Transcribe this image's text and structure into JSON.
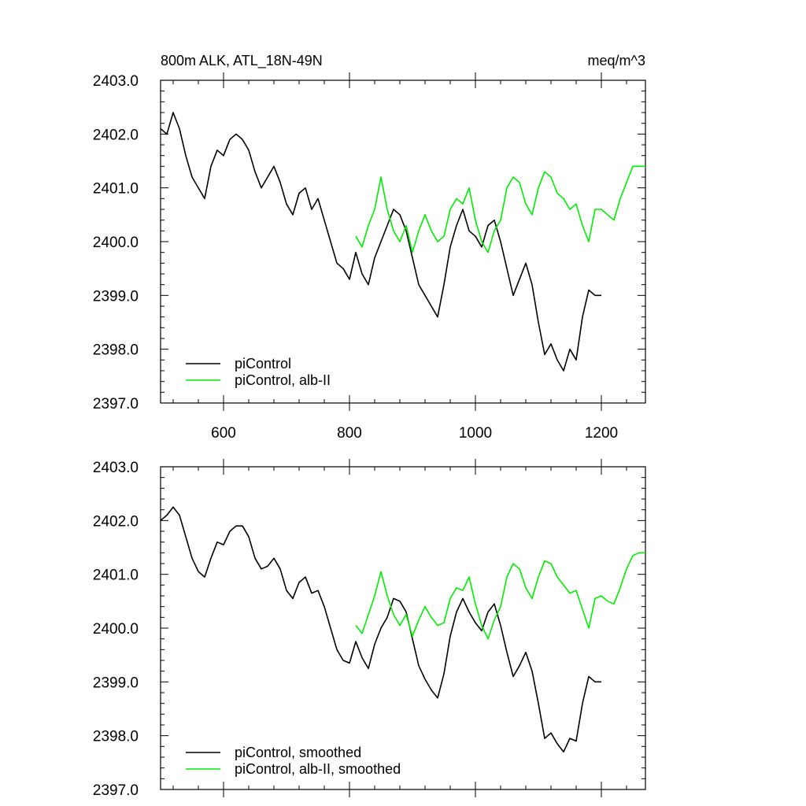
{
  "chart_data": [
    {
      "type": "line",
      "title": "800m ALK, ATL_18N-49N",
      "units": "meq/m^3",
      "xlim": [
        500,
        1270
      ],
      "ylim": [
        2397.0,
        2403.0
      ],
      "x_ticks": [
        600,
        800,
        1000,
        1200
      ],
      "x_tick_labels": [
        "600",
        "800",
        "1000",
        "1200"
      ],
      "y_ticks": [
        2397.0,
        2398.0,
        2399.0,
        2400.0,
        2401.0,
        2402.0,
        2403.0
      ],
      "y_tick_labels": [
        "2397.0",
        "2398.0",
        "2399.0",
        "2400.0",
        "2401.0",
        "2402.0",
        "2403.0"
      ],
      "legend_position": "bottom-left",
      "series": [
        {
          "name": "piControl",
          "color": "#000000",
          "x": [
            500,
            510,
            520,
            530,
            540,
            550,
            560,
            570,
            580,
            590,
            600,
            610,
            620,
            630,
            640,
            650,
            660,
            670,
            680,
            690,
            700,
            710,
            720,
            730,
            740,
            750,
            760,
            770,
            780,
            790,
            800,
            810,
            820,
            830,
            840,
            850,
            860,
            870,
            880,
            890,
            900,
            910,
            920,
            930,
            940,
            950,
            960,
            970,
            980,
            990,
            1000,
            1010,
            1020,
            1030,
            1040,
            1050,
            1060,
            1070,
            1080,
            1090,
            1100,
            1110,
            1120,
            1130,
            1140,
            1150,
            1160,
            1170,
            1180,
            1190,
            1200
          ],
          "y": [
            2402.1,
            2402.0,
            2402.4,
            2402.1,
            2401.6,
            2401.2,
            2401.0,
            2400.8,
            2401.4,
            2401.7,
            2401.6,
            2401.9,
            2402.0,
            2401.9,
            2401.7,
            2401.3,
            2401.0,
            2401.2,
            2401.4,
            2401.1,
            2400.7,
            2400.5,
            2400.9,
            2401.0,
            2400.6,
            2400.8,
            2400.4,
            2400.0,
            2399.6,
            2399.5,
            2399.3,
            2399.8,
            2399.4,
            2399.2,
            2399.7,
            2400.0,
            2400.3,
            2400.6,
            2400.5,
            2400.2,
            2399.7,
            2399.2,
            2399.0,
            2398.8,
            2398.6,
            2399.2,
            2399.9,
            2400.3,
            2400.6,
            2400.2,
            2400.1,
            2399.9,
            2400.3,
            2400.4,
            2400.0,
            2399.5,
            2399.0,
            2399.3,
            2399.6,
            2399.2,
            2398.5,
            2397.9,
            2398.1,
            2397.8,
            2397.6,
            2398.0,
            2397.8,
            2398.6,
            2399.1,
            2399.0,
            2399.0
          ]
        },
        {
          "name": "piControl, alb-II",
          "color": "#00ee00",
          "x": [
            810,
            820,
            830,
            840,
            850,
            860,
            870,
            880,
            890,
            900,
            910,
            920,
            930,
            940,
            950,
            960,
            970,
            980,
            990,
            1000,
            1010,
            1020,
            1030,
            1040,
            1050,
            1060,
            1070,
            1080,
            1090,
            1100,
            1110,
            1120,
            1130,
            1140,
            1150,
            1160,
            1170,
            1180,
            1190,
            1200,
            1210,
            1220,
            1230,
            1240,
            1250,
            1260,
            1270
          ],
          "y": [
            2400.1,
            2399.9,
            2400.3,
            2400.6,
            2401.2,
            2400.6,
            2400.2,
            2400.0,
            2400.3,
            2399.8,
            2400.2,
            2400.5,
            2400.2,
            2400.0,
            2400.1,
            2400.6,
            2400.8,
            2400.7,
            2401.0,
            2400.4,
            2400.0,
            2399.8,
            2400.2,
            2400.4,
            2401.0,
            2401.2,
            2401.1,
            2400.7,
            2400.5,
            2401.0,
            2401.3,
            2401.2,
            2400.9,
            2400.8,
            2400.6,
            2400.7,
            2400.3,
            2400.0,
            2400.6,
            2400.6,
            2400.5,
            2400.4,
            2400.8,
            2401.1,
            2401.4,
            2401.4,
            2401.4
          ]
        }
      ]
    },
    {
      "type": "line",
      "title": "",
      "ylim": [
        2397.0,
        2403.0
      ],
      "xlim": [
        500,
        1270
      ],
      "x_ticks": [
        600,
        800,
        1000,
        1200
      ],
      "y_ticks": [
        2397.0,
        2398.0,
        2399.0,
        2400.0,
        2401.0,
        2402.0,
        2403.0
      ],
      "y_tick_labels": [
        "2397.0",
        "2398.0",
        "2399.0",
        "2400.0",
        "2401.0",
        "2402.0",
        "2403.0"
      ],
      "legend_position": "bottom-left",
      "series": [
        {
          "name": "piControl, smoothed",
          "color": "#000000",
          "x": [
            500,
            510,
            520,
            530,
            540,
            550,
            560,
            570,
            580,
            590,
            600,
            610,
            620,
            630,
            640,
            650,
            660,
            670,
            680,
            690,
            700,
            710,
            720,
            730,
            740,
            750,
            760,
            770,
            780,
            790,
            800,
            810,
            820,
            830,
            840,
            850,
            860,
            870,
            880,
            890,
            900,
            910,
            920,
            930,
            940,
            950,
            960,
            970,
            980,
            990,
            1000,
            1010,
            1020,
            1030,
            1040,
            1050,
            1060,
            1070,
            1080,
            1090,
            1100,
            1110,
            1120,
            1130,
            1140,
            1150,
            1160,
            1170,
            1180,
            1190,
            1200
          ],
          "y": [
            2402.0,
            2402.1,
            2402.25,
            2402.1,
            2401.7,
            2401.3,
            2401.05,
            2400.95,
            2401.3,
            2401.6,
            2401.55,
            2401.8,
            2401.9,
            2401.9,
            2401.7,
            2401.3,
            2401.1,
            2401.15,
            2401.3,
            2401.1,
            2400.7,
            2400.55,
            2400.85,
            2400.95,
            2400.65,
            2400.7,
            2400.4,
            2400.0,
            2399.6,
            2399.4,
            2399.35,
            2399.75,
            2399.45,
            2399.25,
            2399.7,
            2400.0,
            2400.2,
            2400.55,
            2400.5,
            2400.3,
            2399.8,
            2399.3,
            2399.05,
            2398.85,
            2398.7,
            2399.15,
            2399.85,
            2400.3,
            2400.55,
            2400.3,
            2400.1,
            2399.95,
            2400.3,
            2400.45,
            2400.05,
            2399.55,
            2399.1,
            2399.3,
            2399.55,
            2399.2,
            2398.6,
            2397.95,
            2398.05,
            2397.85,
            2397.7,
            2397.95,
            2397.9,
            2398.6,
            2399.1,
            2399.0,
            2399.0
          ]
        },
        {
          "name": "piControl, alb-II, smoothed",
          "color": "#00ee00",
          "x": [
            810,
            820,
            830,
            840,
            850,
            860,
            870,
            880,
            890,
            900,
            910,
            920,
            930,
            940,
            950,
            960,
            970,
            980,
            990,
            1000,
            1010,
            1020,
            1030,
            1040,
            1050,
            1060,
            1070,
            1080,
            1090,
            1100,
            1110,
            1120,
            1130,
            1140,
            1150,
            1160,
            1170,
            1180,
            1190,
            1200,
            1210,
            1220,
            1230,
            1240,
            1250,
            1260,
            1270
          ],
          "y": [
            2400.05,
            2399.9,
            2400.25,
            2400.6,
            2401.05,
            2400.6,
            2400.25,
            2400.05,
            2400.25,
            2399.85,
            2400.15,
            2400.4,
            2400.2,
            2400.05,
            2400.1,
            2400.55,
            2400.75,
            2400.7,
            2400.95,
            2400.45,
            2400.05,
            2399.8,
            2400.15,
            2400.4,
            2400.95,
            2401.2,
            2401.1,
            2400.75,
            2400.55,
            2400.95,
            2401.25,
            2401.2,
            2400.95,
            2400.8,
            2400.65,
            2400.7,
            2400.35,
            2400.0,
            2400.55,
            2400.6,
            2400.5,
            2400.45,
            2400.75,
            2401.1,
            2401.35,
            2401.4,
            2401.4
          ]
        }
      ]
    }
  ]
}
